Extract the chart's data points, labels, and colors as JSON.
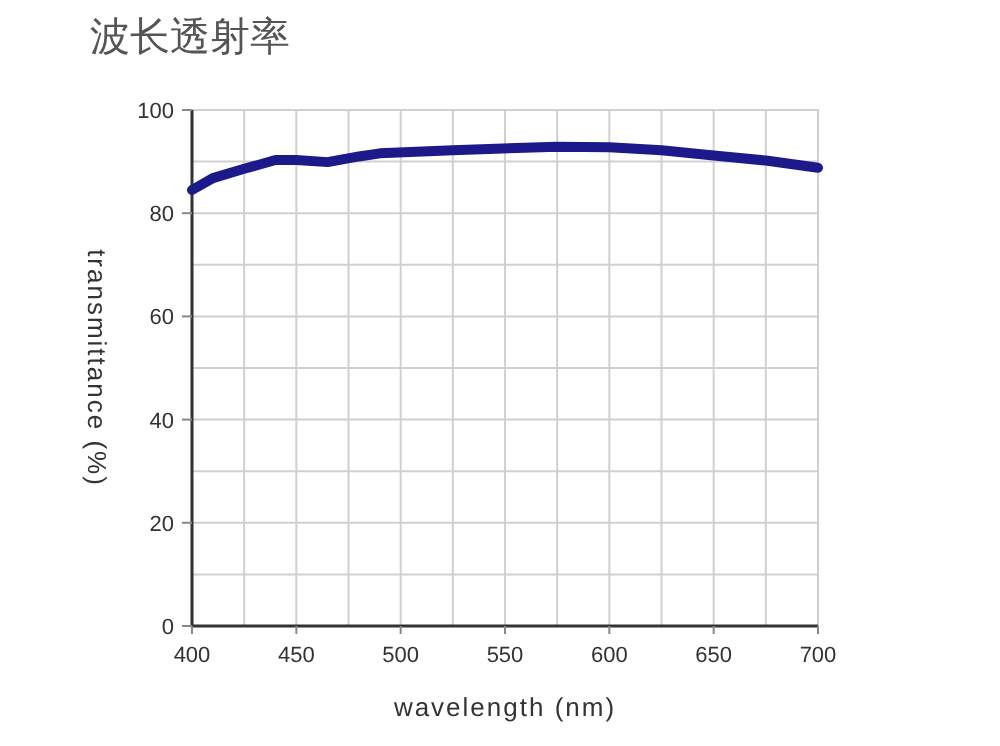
{
  "chart_data": {
    "type": "line",
    "title": "波长透射率",
    "xlabel": "wavelength (nm)",
    "ylabel": "transmittance (%)",
    "x": [
      400,
      410,
      425,
      440,
      450,
      465,
      480,
      490,
      525,
      575,
      600,
      625,
      650,
      675,
      700
    ],
    "series": [
      {
        "color": "#1c1a8a",
        "values": [
          84.5,
          86.8,
          88.6,
          90.3,
          90.3,
          89.9,
          91,
          91.6,
          92.2,
          92.9,
          92.8,
          92.2,
          91.2,
          90.2,
          88.8
        ]
      }
    ],
    "xlim": [
      400,
      700
    ],
    "ylim": [
      0,
      100
    ],
    "xticks": [
      400,
      {
        "value": 425,
        "label": null
      },
      450,
      {
        "value": 475,
        "label": null
      },
      500,
      {
        "value": 525,
        "label": null
      },
      550,
      {
        "value": 575,
        "label": null
      },
      600,
      {
        "value": 625,
        "label": null
      },
      650,
      {
        "value": 675,
        "label": null
      },
      700
    ],
    "yticks": [
      0,
      {
        "value": 10,
        "label": null
      },
      20,
      {
        "value": 30,
        "label": null
      },
      40,
      {
        "value": 50,
        "label": null
      },
      60,
      {
        "value": 70,
        "label": null
      },
      80,
      {
        "value": 90,
        "label": null
      },
      100
    ],
    "grid": true,
    "marker": "none",
    "line_style": "solid"
  }
}
